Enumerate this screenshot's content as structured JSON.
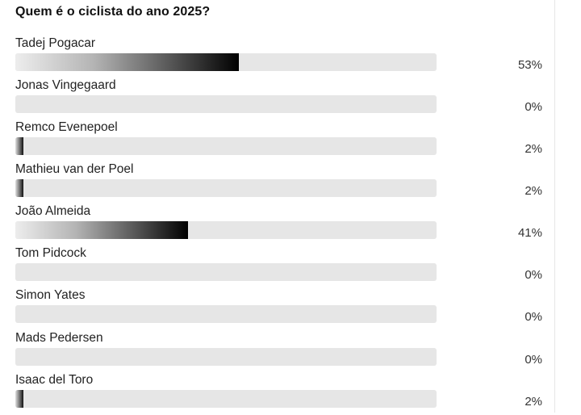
{
  "poll": {
    "question": "Quem é o ciclista do ano 2025?",
    "options": [
      {
        "label": "Tadej Pogacar",
        "percent_text": "53%",
        "percent": 53
      },
      {
        "label": "Jonas Vingegaard",
        "percent_text": "0%",
        "percent": 0
      },
      {
        "label": "Remco Evenepoel",
        "percent_text": "2%",
        "percent": 2
      },
      {
        "label": "Mathieu van der Poel",
        "percent_text": "2%",
        "percent": 2
      },
      {
        "label": "João Almeida",
        "percent_text": "41%",
        "percent": 41
      },
      {
        "label": "Tom Pidcock",
        "percent_text": "0%",
        "percent": 0
      },
      {
        "label": "Simon Yates",
        "percent_text": "0%",
        "percent": 0
      },
      {
        "label": "Mads Pedersen",
        "percent_text": "0%",
        "percent": 0
      },
      {
        "label": "Isaac del Toro",
        "percent_text": "2%",
        "percent": 2
      }
    ]
  },
  "colors": {
    "track": "#e6e6e6",
    "fill_start": "#ededed",
    "fill_end": "#000000"
  }
}
